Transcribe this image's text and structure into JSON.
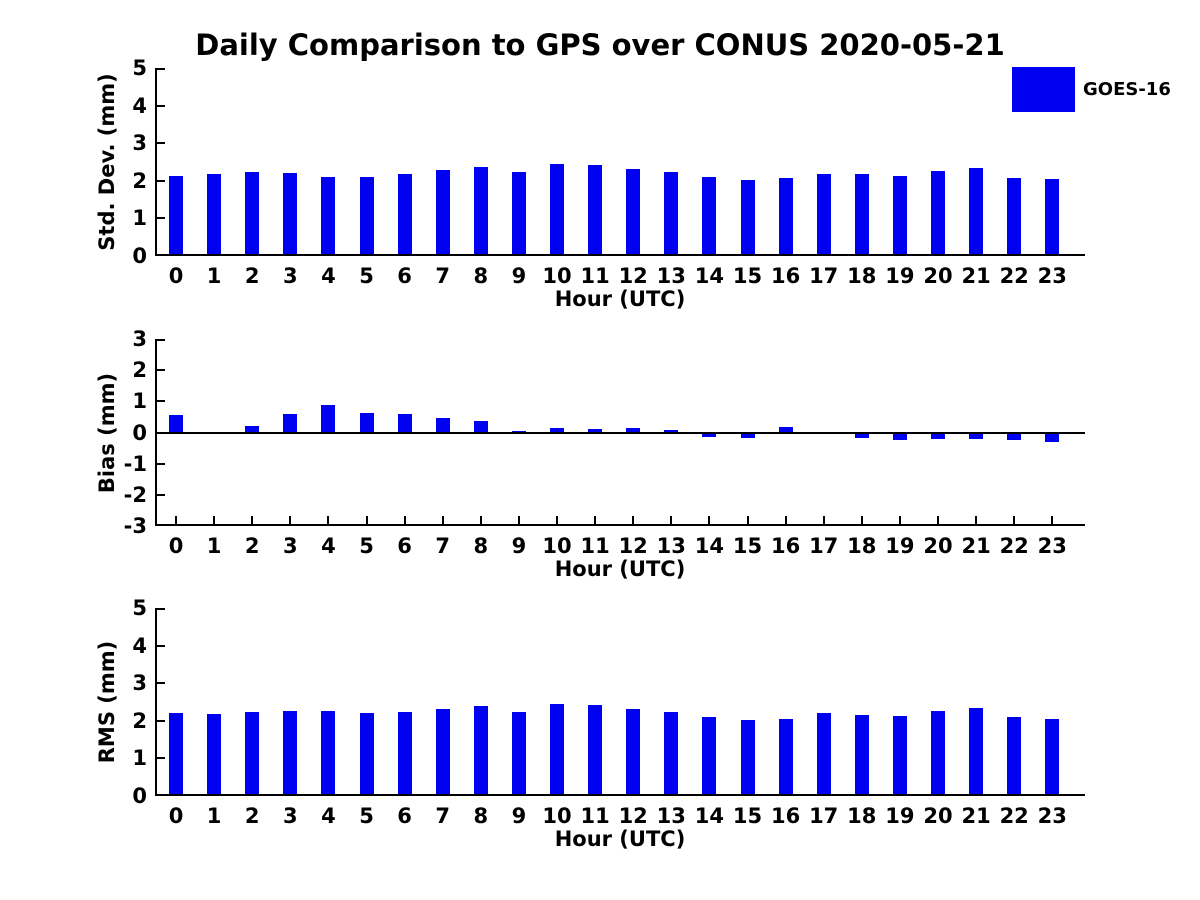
{
  "title": "Daily Comparison to GPS over CONUS 2020-05-21",
  "legend": {
    "label": "GOES-16",
    "color": "#0000f0"
  },
  "colors": {
    "bar": "#0000f0",
    "axis": "#000000",
    "background": "#ffffff"
  },
  "chart_data": [
    {
      "type": "bar",
      "ylabel": "Std. Dev. (mm)",
      "xlabel": "Hour (UTC)",
      "ylim": [
        0,
        5
      ],
      "yticks": [
        0,
        1,
        2,
        3,
        4,
        5
      ],
      "categories": [
        "0",
        "1",
        "2",
        "3",
        "4",
        "5",
        "6",
        "7",
        "8",
        "9",
        "10",
        "11",
        "12",
        "13",
        "14",
        "15",
        "16",
        "17",
        "18",
        "19",
        "20",
        "21",
        "22",
        "23"
      ],
      "legend_position": "upper right outside",
      "grid": false,
      "series": [
        {
          "name": "GOES-16",
          "values": [
            2.12,
            2.18,
            2.23,
            2.21,
            2.09,
            2.09,
            2.18,
            2.28,
            2.36,
            2.23,
            2.44,
            2.43,
            2.31,
            2.24,
            2.11,
            2.02,
            2.07,
            2.18,
            2.17,
            2.12,
            2.26,
            2.34,
            2.07,
            2.04
          ]
        }
      ]
    },
    {
      "type": "bar",
      "ylabel": "Bias (mm)",
      "xlabel": "Hour (UTC)",
      "ylim": [
        -3,
        3
      ],
      "yticks": [
        -3,
        -2,
        -1,
        0,
        1,
        2,
        3
      ],
      "categories": [
        "0",
        "1",
        "2",
        "3",
        "4",
        "5",
        "6",
        "7",
        "8",
        "9",
        "10",
        "11",
        "12",
        "13",
        "14",
        "15",
        "16",
        "17",
        "18",
        "19",
        "20",
        "21",
        "22",
        "23"
      ],
      "zero_line": true,
      "grid": false,
      "series": [
        {
          "name": "GOES-16",
          "values": [
            0.57,
            -0.04,
            0.21,
            0.58,
            0.88,
            0.63,
            0.59,
            0.45,
            0.38,
            0.04,
            0.16,
            0.12,
            0.13,
            0.09,
            -0.15,
            -0.18,
            0.17,
            -0.02,
            -0.19,
            -0.23,
            -0.21,
            -0.21,
            -0.23,
            -0.3
          ]
        }
      ]
    },
    {
      "type": "bar",
      "ylabel": "RMS (mm)",
      "xlabel": "Hour (UTC)",
      "ylim": [
        0,
        5
      ],
      "yticks": [
        0,
        1,
        2,
        3,
        4,
        5
      ],
      "categories": [
        "0",
        "1",
        "2",
        "3",
        "4",
        "5",
        "6",
        "7",
        "8",
        "9",
        "10",
        "11",
        "12",
        "13",
        "14",
        "15",
        "16",
        "17",
        "18",
        "19",
        "20",
        "21",
        "22",
        "23"
      ],
      "grid": false,
      "series": [
        {
          "name": "GOES-16",
          "values": [
            2.22,
            2.19,
            2.24,
            2.27,
            2.27,
            2.2,
            2.23,
            2.32,
            2.4,
            2.24,
            2.45,
            2.43,
            2.32,
            2.24,
            2.11,
            2.03,
            2.06,
            2.2,
            2.16,
            2.13,
            2.27,
            2.34,
            2.09,
            2.06
          ]
        }
      ]
    }
  ]
}
